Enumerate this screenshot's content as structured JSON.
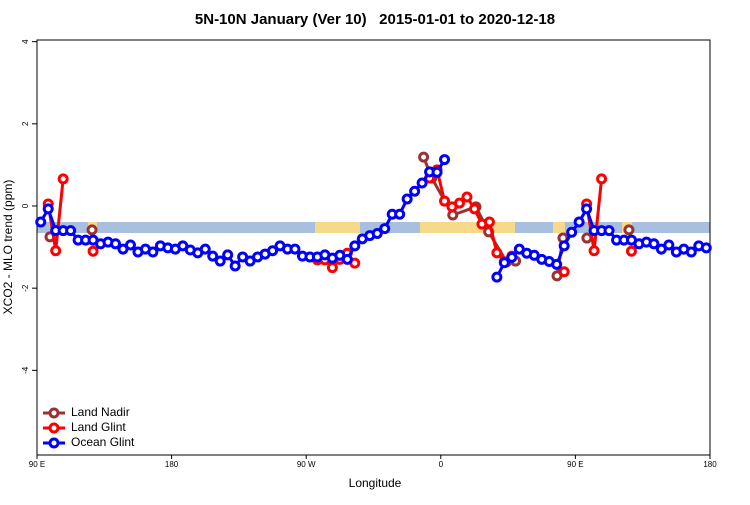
{
  "chart_data": {
    "type": "line",
    "title": "5N-10N January (Ver 10)   2015-01-01 to 2020-12-18",
    "x_label": "Longitude",
    "y_label": "XCO2 - MLO trend (ppm)",
    "xlim": [
      90,
      540
    ],
    "xticks": [
      {
        "value": 90,
        "label": "90 E"
      },
      180,
      {
        "value": 270,
        "label": "90 W"
      },
      {
        "value": 360,
        "label": "0"
      },
      {
        "value": 450,
        "label": "90 E"
      },
      {
        "value": 540,
        "label": "180"
      }
    ],
    "ylim": [
      -6.06,
      4.04
    ],
    "yticks": [
      -4,
      -2,
      0,
      2,
      4
    ],
    "legend": "bottomleft",
    "series": [
      {
        "name": "Land Nadir",
        "color": "#993333",
        "x": [
          98.7,
          null,
          126.8,
          null,
          348.5,
          354,
          368,
          383.5,
          392,
          404,
          410,
          null,
          437.7,
          441.7,
          null,
          457.7,
          null,
          485.8
        ],
        "values": [
          -0.75,
          null,
          -0.58,
          null,
          1.19,
          0.68,
          -0.22,
          -0.02,
          -0.63,
          -1.36,
          -1.34,
          null,
          -1.7,
          -0.78,
          null,
          -0.78,
          null,
          -0.58
        ]
      },
      {
        "name": "Land Glint",
        "color": "#ff0000",
        "x": [
          97.5,
          102.5,
          107.5,
          null,
          127.5,
          null,
          277.5,
          282.5,
          287.5,
          292.5,
          297.5,
          302.5,
          null,
          352.5,
          357.5,
          362.5,
          367.5,
          372.5,
          377.5,
          382.5,
          387.5,
          392.5,
          397.5,
          402.5,
          407.5,
          null,
          442.5,
          null,
          457.5,
          462.5,
          467.5,
          null,
          487.5
        ],
        "values": [
          0.05,
          -1.09,
          0.66,
          null,
          -1.1,
          null,
          -1.31,
          -1.31,
          -1.5,
          -1.3,
          -1.15,
          -1.39,
          null,
          0.68,
          0.88,
          0.12,
          -0.02,
          0.07,
          0.22,
          -0.07,
          -0.44,
          -0.39,
          -1.14,
          -1.36,
          -1.22,
          null,
          -1.6,
          null,
          0.05,
          -1.09,
          0.66,
          null,
          -1.1
        ]
      },
      {
        "name": "Ocean Glint",
        "color": "#0000ff",
        "x": [
          92.5,
          97.5,
          102.5,
          107.5,
          112.5,
          117.5,
          122.5,
          127.5,
          132.5,
          137.5,
          142.5,
          147.5,
          152.5,
          157.5,
          162.5,
          167.5,
          172.5,
          177.5,
          182.5,
          187.5,
          192.5,
          197.5,
          202.5,
          207.5,
          212.5,
          217.5,
          222.5,
          227.5,
          232.5,
          237.5,
          242.5,
          247.5,
          252.5,
          257.5,
          262.5,
          267.5,
          272.5,
          277.5,
          282.5,
          287.5,
          292.5,
          297.5,
          302.5,
          307.5,
          312.5,
          317.5,
          322.5,
          327.5,
          332.5,
          337.5,
          342.5,
          347.5,
          352.5,
          357.5,
          362.5,
          367.5,
          372.5,
          377.5,
          382.5,
          387.5,
          392.5,
          397.5,
          402.5,
          407.5,
          412.5,
          417.5,
          422.5,
          427.5,
          432.5,
          437.5,
          442.5,
          447.5,
          452.5,
          457.5,
          462.5,
          467.5,
          472.5,
          477.5,
          482.5,
          487.5,
          492.5,
          497.5,
          502.5,
          507.5,
          512.5,
          517.5,
          522.5,
          527.5,
          532.5,
          537.5
        ],
        "values": [
          -0.39,
          -0.07,
          -0.6,
          -0.6,
          -0.6,
          -0.83,
          -0.83,
          -0.83,
          -0.92,
          -0.88,
          -0.92,
          -1.05,
          -0.95,
          -1.12,
          -1.05,
          -1.12,
          -0.97,
          -1.02,
          -1.05,
          -0.97,
          -1.07,
          -1.14,
          -1.05,
          -1.22,
          -1.34,
          -1.19,
          -1.46,
          -1.24,
          -1.34,
          -1.24,
          -1.17,
          -1.09,
          -0.97,
          -1.05,
          -1.05,
          -1.22,
          -1.24,
          -1.24,
          -1.19,
          -1.27,
          -1.2,
          -1.3,
          -0.97,
          -0.8,
          -0.72,
          -0.67,
          -0.55,
          -0.2,
          -0.2,
          0.17,
          0.36,
          0.56,
          0.83,
          0.82,
          1.13,
          null,
          null,
          null,
          null,
          null,
          null,
          -1.73,
          -1.38,
          -1.25,
          -1.05,
          -1.15,
          -1.2,
          -1.3,
          -1.35,
          -1.42,
          -0.97,
          -0.64,
          -0.39,
          -0.07,
          -0.6,
          -0.6,
          -0.6,
          -0.83,
          -0.83,
          -0.83,
          -0.92,
          -0.88,
          -0.92,
          -1.05,
          -0.95,
          -1.12,
          -1.05,
          -1.12,
          -0.97,
          -1.02
        ]
      }
    ]
  }
}
